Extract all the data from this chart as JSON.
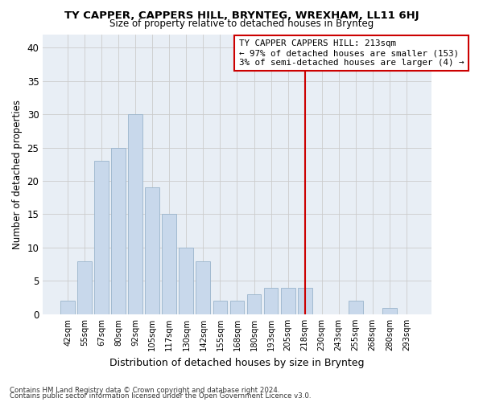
{
  "title": "TY CAPPER, CAPPERS HILL, BRYNTEG, WREXHAM, LL11 6HJ",
  "subtitle": "Size of property relative to detached houses in Brynteg",
  "xlabel": "Distribution of detached houses by size in Brynteg",
  "ylabel": "Number of detached properties",
  "bar_labels": [
    "42sqm",
    "55sqm",
    "67sqm",
    "80sqm",
    "92sqm",
    "105sqm",
    "117sqm",
    "130sqm",
    "142sqm",
    "155sqm",
    "168sqm",
    "180sqm",
    "193sqm",
    "205sqm",
    "218sqm",
    "230sqm",
    "243sqm",
    "255sqm",
    "268sqm",
    "280sqm",
    "293sqm"
  ],
  "bar_heights": [
    2,
    8,
    23,
    25,
    30,
    19,
    15,
    10,
    8,
    2,
    2,
    3,
    4,
    4,
    4,
    0,
    0,
    2,
    0,
    1,
    0
  ],
  "bar_color": "#c8d8eb",
  "bar_edge_color": "#9ab4cc",
  "ylim": [
    0,
    42
  ],
  "yticks": [
    0,
    5,
    10,
    15,
    20,
    25,
    30,
    35,
    40
  ],
  "vline_x_idx": 14,
  "vline_color": "#cc0000",
  "annotation_title": "TY CAPPER CAPPERS HILL: 213sqm",
  "annotation_line1": "← 97% of detached houses are smaller (153)",
  "annotation_line2": "3% of semi-detached houses are larger (4) →",
  "footer1": "Contains HM Land Registry data © Crown copyright and database right 2024.",
  "footer2": "Contains public sector information licensed under the Open Government Licence v3.0.",
  "bg_color": "#ffffff",
  "plot_bg_color": "#e8eef5"
}
